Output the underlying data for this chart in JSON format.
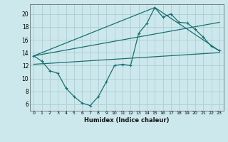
{
  "xlabel": "Humidex (Indice chaleur)",
  "background_color": "#cde8ec",
  "grid_color": "#aacdd4",
  "line_color": "#1a7070",
  "xlim": [
    -0.5,
    23.5
  ],
  "ylim": [
    5.0,
    21.5
  ],
  "yticks": [
    6,
    8,
    10,
    12,
    14,
    16,
    18,
    20
  ],
  "xticks": [
    0,
    1,
    2,
    3,
    4,
    5,
    6,
    7,
    8,
    9,
    10,
    11,
    12,
    13,
    14,
    15,
    16,
    17,
    18,
    19,
    20,
    21,
    22,
    23
  ],
  "line1_x": [
    0,
    1,
    2,
    3,
    4,
    5,
    6,
    7,
    8,
    9,
    10,
    11,
    12,
    13,
    14,
    15,
    16,
    17,
    18,
    19,
    20,
    21,
    22,
    23
  ],
  "line1_y": [
    13.5,
    12.7,
    11.2,
    10.8,
    8.5,
    7.2,
    6.2,
    5.8,
    7.2,
    9.5,
    12.0,
    12.2,
    12.0,
    17.0,
    18.5,
    21.0,
    19.5,
    20.0,
    18.7,
    18.6,
    17.6,
    16.4,
    15.0,
    14.3
  ],
  "line2_x": [
    0,
    15,
    23
  ],
  "line2_y": [
    13.5,
    21.0,
    14.3
  ],
  "line3_x": [
    0,
    23
  ],
  "line3_y": [
    13.5,
    18.7
  ],
  "line4_x": [
    0,
    23
  ],
  "line4_y": [
    12.2,
    14.0
  ]
}
